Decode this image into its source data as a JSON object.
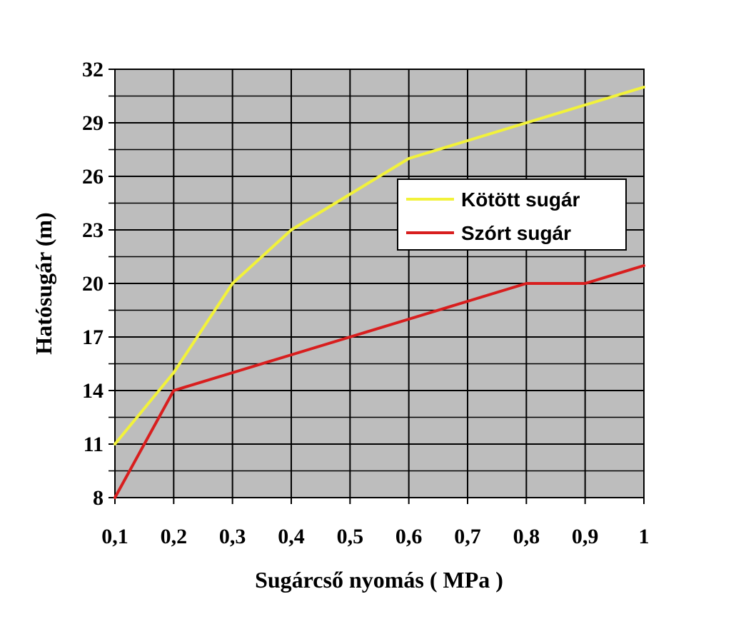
{
  "chart_data": {
    "type": "line",
    "title": "",
    "xlabel": "Sugárcső nyomás ( MPa )",
    "ylabel": "Hatósugár (m)",
    "x": [
      0.1,
      0.2,
      0.3,
      0.4,
      0.5,
      0.6,
      0.7,
      0.8,
      0.9,
      1.0
    ],
    "x_tick_labels": [
      "0,1",
      "0,2",
      "0,3",
      "0,4",
      "0,5",
      "0,6",
      "0,7",
      "0,8",
      "0,9",
      "1"
    ],
    "xlim": [
      0.1,
      1.0
    ],
    "y_ticks": [
      8,
      11,
      14,
      17,
      20,
      23,
      26,
      29,
      32
    ],
    "ylim": [
      8,
      32
    ],
    "grid": true,
    "legend_position": "upper-right",
    "plot_background": "#bdbdbd",
    "series": [
      {
        "name": "Kötött sugár",
        "color": "#f2f23a",
        "values": [
          11,
          15,
          20,
          23,
          25,
          27,
          28,
          29,
          30,
          31
        ]
      },
      {
        "name": "Szórt sugár",
        "color": "#d81e1e",
        "values": [
          8,
          14,
          15,
          16,
          17,
          18,
          19,
          20,
          20,
          21
        ]
      }
    ]
  }
}
